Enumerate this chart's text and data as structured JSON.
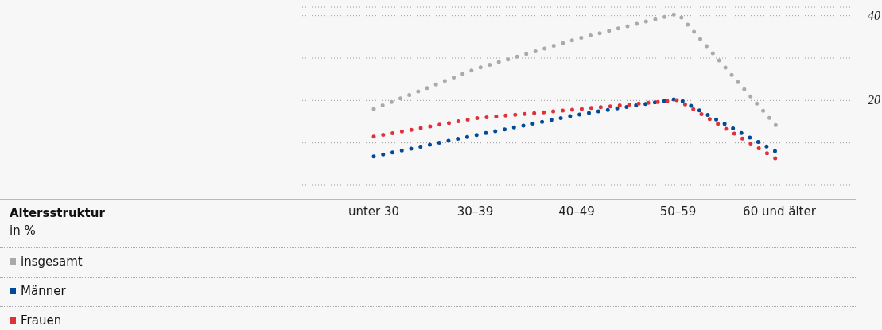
{
  "chart_data": {
    "type": "line",
    "title": "Altersstruktur",
    "subtitle": "in %",
    "categories": [
      "unter 30",
      "30–39",
      "40–49",
      "50–59",
      "60 und älter"
    ],
    "series": [
      {
        "name": "insgesamt",
        "color": "#aaaaaa",
        "values": [
          18.0,
          27.4,
          34.5,
          40.5,
          13.2
        ]
      },
      {
        "name": "Männer",
        "color": "#004a98",
        "values": [
          6.8,
          11.8,
          16.6,
          20.4,
          7.5
        ]
      },
      {
        "name": "Frauen",
        "color": "#e0303a",
        "values": [
          11.5,
          15.8,
          17.9,
          20.1,
          5.8
        ]
      }
    ],
    "ylim": [
      0,
      42
    ],
    "yticks": [
      {
        "value": 0,
        "label": null
      },
      {
        "value": 10,
        "label": null
      },
      20,
      {
        "value": 30,
        "label": null
      },
      40
    ],
    "grid": "y",
    "legend": "bottom left",
    "line_style": "dotted"
  }
}
